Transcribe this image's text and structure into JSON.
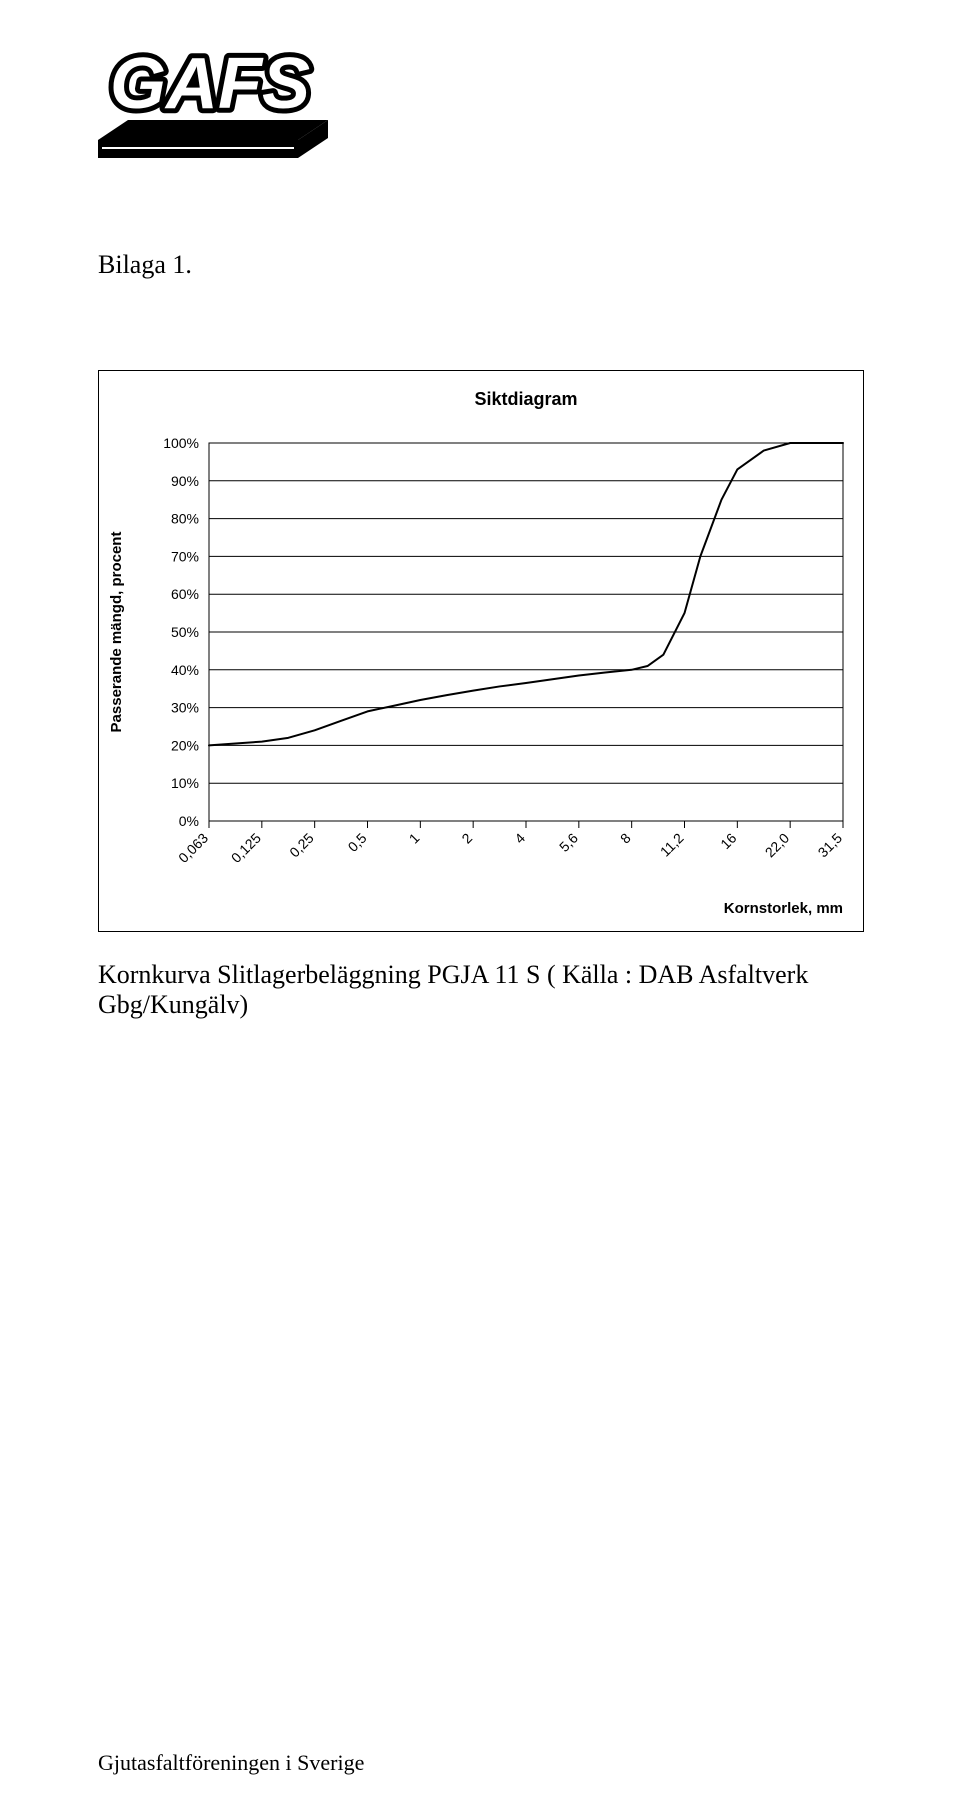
{
  "logo": {
    "text": "GAFS",
    "text_color": "#ffffff",
    "shape_color": "#000000",
    "bg": "#ffffff"
  },
  "heading": "Bilaga 1.",
  "caption": "Kornkurva Slitlagerbeläggning PGJA 11 S ( Källa : DAB Asfaltverk Gbg/Kungälv)",
  "footer": "Gjutasfaltföreningen i Sverige",
  "chart": {
    "type": "line",
    "title": "Siktdiagram",
    "title_fontsize": 18,
    "title_weight": "bold",
    "ylabel": "Passerande mängd, procent",
    "xlabel": "Kornstorlek, mm",
    "label_fontsize": 15,
    "label_weight": "bold",
    "background_color": "#ffffff",
    "axis_color": "#000000",
    "grid_color": "#000000",
    "line_color": "#000000",
    "line_width": 2,
    "tick_fontsize": 14,
    "tick_font_family": "Arial, Helvetica, sans-serif",
    "ylim": [
      0,
      100
    ],
    "yticks": [
      0,
      10,
      20,
      30,
      40,
      50,
      60,
      70,
      80,
      90,
      100
    ],
    "ytick_labels": [
      "0%",
      "10%",
      "20%",
      "30%",
      "40%",
      "50%",
      "60%",
      "70%",
      "80%",
      "90%",
      "100%"
    ],
    "x_categories": [
      "0,063",
      "0,125",
      "0,25",
      "0,5",
      "1",
      "2",
      "4",
      "5,6",
      "8",
      "11,2",
      "16",
      "22,0",
      "31,5"
    ],
    "x_tick_rotation": -45,
    "series": {
      "x_index": [
        0,
        0.5,
        1,
        1.5,
        2,
        2.5,
        3,
        3.5,
        4,
        4.5,
        5,
        5.5,
        6,
        6.5,
        7,
        7.5,
        8,
        8.3,
        8.6,
        9,
        9.3,
        9.7,
        10,
        10.5,
        11,
        11.5,
        12
      ],
      "y": [
        20,
        20.5,
        21,
        22,
        24,
        26.5,
        29,
        30.5,
        32,
        33.3,
        34.5,
        35.6,
        36.5,
        37.5,
        38.5,
        39.3,
        40,
        41,
        44,
        55,
        70,
        85,
        93,
        98,
        100,
        100,
        100
      ]
    },
    "plot_inner_border": true
  }
}
